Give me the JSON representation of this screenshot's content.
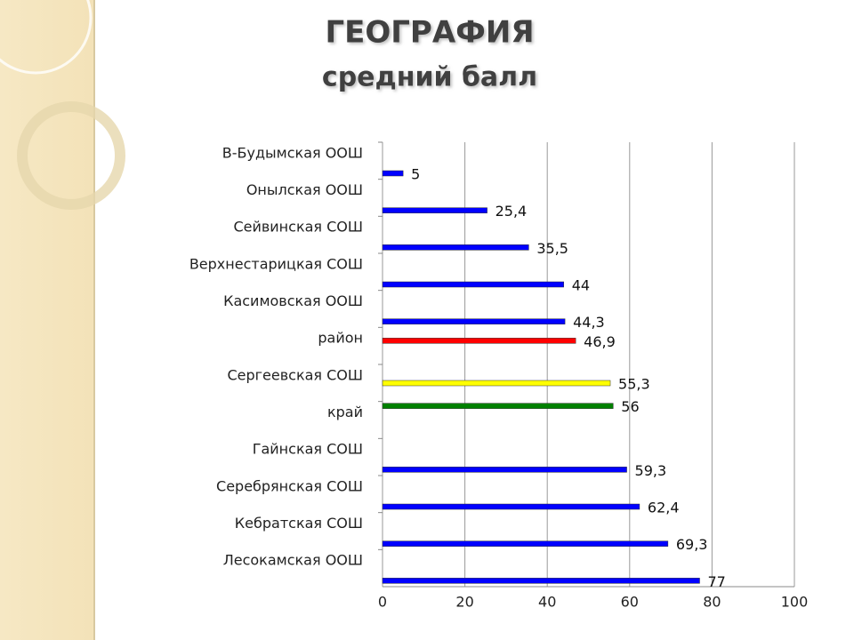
{
  "chart_data": {
    "type": "bar",
    "orientation": "horizontal",
    "title": "ГЕОГРАФИЯ",
    "subtitle": "средний балл",
    "categories": [
      "В-Будымская ООШ",
      "Онылская ООШ",
      "Сейвинская СОШ",
      "Верхнестарицкая СОШ",
      "Касимовская ООШ",
      "район",
      "Сергеевская СОШ",
      "край",
      "Гайнская СОШ",
      "Серебрянская СОШ",
      "Кебратская СОШ",
      "Лесокамская ООШ"
    ],
    "series": [
      {
        "color": "#0000ff",
        "values": [
          5,
          25.4,
          35.5,
          44,
          44.3,
          null,
          null,
          null,
          59.3,
          62.4,
          69.3,
          77
        ],
        "value_labels": [
          "5",
          "25,4",
          "35,5",
          "44",
          "44,3",
          null,
          null,
          null,
          "59,3",
          "62,4",
          "69,3",
          "77"
        ]
      },
      {
        "color": "#ff0000",
        "values": [
          null,
          null,
          null,
          null,
          null,
          46.9,
          null,
          null,
          null,
          null,
          null,
          null
        ],
        "value_labels": [
          null,
          null,
          null,
          null,
          null,
          "46,9",
          null,
          null,
          null,
          null,
          null,
          null
        ]
      },
      {
        "color": "#ffff00",
        "values": [
          null,
          null,
          null,
          null,
          null,
          null,
          55.3,
          null,
          null,
          null,
          null,
          null
        ],
        "value_labels": [
          null,
          null,
          null,
          null,
          null,
          null,
          "55,3",
          null,
          null,
          null,
          null,
          null
        ]
      },
      {
        "color": "#008000",
        "values": [
          null,
          null,
          null,
          null,
          null,
          null,
          null,
          56,
          null,
          null,
          null,
          null
        ],
        "value_labels": [
          null,
          null,
          null,
          null,
          null,
          null,
          null,
          "56",
          null,
          null,
          null,
          null
        ]
      }
    ],
    "xlim": [
      0,
      100
    ],
    "xticks": [
      0,
      20,
      40,
      60,
      80,
      100
    ],
    "grid": true
  }
}
